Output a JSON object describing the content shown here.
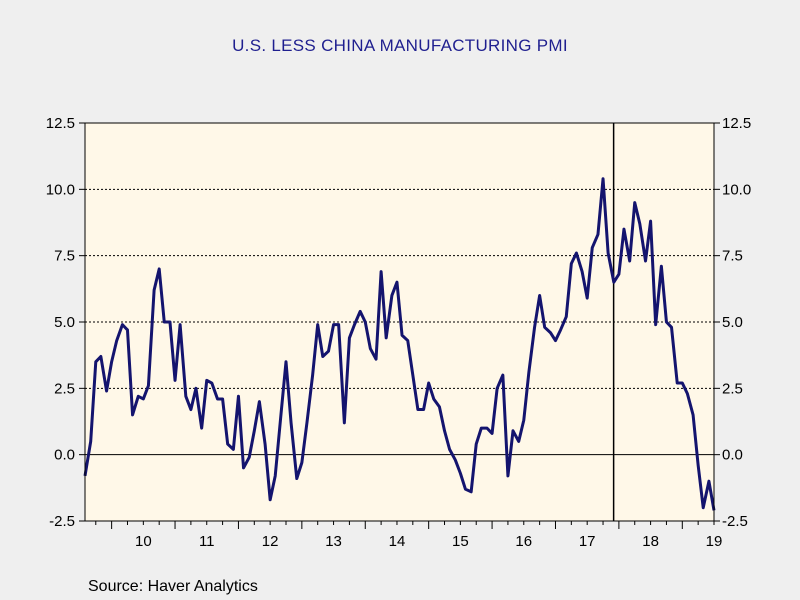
{
  "chart_data": {
    "type": "line",
    "title": "U.S. LESS CHINA MANUFACTURING PMI",
    "source": "Source:  Haver Analytics",
    "ylim": [
      -2.5,
      12.5
    ],
    "xlim": [
      2009.58,
      2019.5
    ],
    "yticks": [
      12.5,
      10.0,
      7.5,
      5.0,
      2.5,
      0.0,
      -2.5
    ],
    "ytick_labels": [
      "12.5",
      "10.0",
      "7.5",
      "5.0",
      "2.5",
      "0.0",
      "-2.5"
    ],
    "xtick_labels": [
      {
        "label": "10",
        "year": 2010
      },
      {
        "label": "11",
        "year": 2011
      },
      {
        "label": "12",
        "year": 2012
      },
      {
        "label": "13",
        "year": 2013
      },
      {
        "label": "14",
        "year": 2014
      },
      {
        "label": "15",
        "year": 2015
      },
      {
        "label": "16",
        "year": 2016
      },
      {
        "label": "17",
        "year": 2017
      },
      {
        "label": "18",
        "year": 2018
      },
      {
        "label": "19",
        "year": 2019
      }
    ],
    "grid": "horizontal dashed",
    "vertical_marker": 2017.917,
    "line_color": "#14146e",
    "plot_background": "#fff8e8",
    "series": [
      {
        "x": [
          2009.58,
          2009.67,
          2009.75,
          2009.83,
          2009.92,
          2010.0,
          2010.08,
          2010.17,
          2010.25,
          2010.33,
          2010.42,
          2010.5,
          2010.58,
          2010.67,
          2010.75,
          2010.83,
          2010.92,
          2011.0,
          2011.08,
          2011.17,
          2011.25,
          2011.33,
          2011.42,
          2011.5,
          2011.58,
          2011.67,
          2011.75,
          2011.83,
          2011.92,
          2012.0,
          2012.08,
          2012.17,
          2012.25,
          2012.33,
          2012.42,
          2012.5,
          2012.58,
          2012.67,
          2012.75,
          2012.83,
          2012.92,
          2013.0,
          2013.08,
          2013.17,
          2013.25,
          2013.33,
          2013.42,
          2013.5,
          2013.58,
          2013.67,
          2013.75,
          2013.83,
          2013.92,
          2014.0,
          2014.08,
          2014.17,
          2014.25,
          2014.33,
          2014.42,
          2014.5,
          2014.58,
          2014.67,
          2014.75,
          2014.83,
          2014.92,
          2015.0,
          2015.08,
          2015.17,
          2015.25,
          2015.33,
          2015.42,
          2015.5,
          2015.58,
          2015.67,
          2015.75,
          2015.83,
          2015.92,
          2016.0,
          2016.08,
          2016.17,
          2016.25,
          2016.33,
          2016.42,
          2016.5,
          2016.58,
          2016.67,
          2016.75,
          2016.83,
          2016.92,
          2017.0,
          2017.08,
          2017.17,
          2017.25,
          2017.33,
          2017.42,
          2017.5,
          2017.58,
          2017.67,
          2017.75,
          2017.83,
          2017.92,
          2018.0,
          2018.08,
          2018.17,
          2018.25,
          2018.33,
          2018.42,
          2018.5,
          2018.58,
          2018.67,
          2018.75,
          2018.83,
          2018.92,
          2019.0,
          2019.08,
          2019.17,
          2019.25,
          2019.33,
          2019.42,
          2019.5
        ],
        "values": [
          -0.8,
          0.5,
          3.5,
          3.7,
          2.4,
          3.5,
          4.3,
          4.9,
          4.7,
          1.5,
          2.2,
          2.1,
          2.6,
          6.2,
          7.0,
          5.0,
          5.0,
          2.8,
          4.9,
          2.2,
          1.7,
          2.5,
          1.0,
          2.8,
          2.7,
          2.1,
          2.1,
          0.4,
          0.2,
          2.2,
          -0.5,
          -0.1,
          0.9,
          2.0,
          0.4,
          -1.7,
          -0.8,
          1.5,
          3.5,
          1.2,
          -0.9,
          -0.3,
          1.2,
          3.0,
          4.9,
          3.7,
          3.9,
          4.9,
          4.9,
          1.2,
          4.4,
          4.9,
          5.4,
          5.0,
          4.0,
          3.6,
          6.9,
          4.4,
          6.0,
          6.5,
          4.5,
          4.3,
          3.0,
          1.7,
          1.7,
          2.7,
          2.1,
          1.8,
          0.9,
          0.2,
          -0.2,
          -0.7,
          -1.3,
          -1.4,
          0.4,
          1.0,
          1.0,
          0.8,
          2.5,
          3.0,
          -0.8,
          0.9,
          0.5,
          1.3,
          3.1,
          4.8,
          6.0,
          4.8,
          4.6,
          4.3,
          4.7,
          5.2,
          7.2,
          7.6,
          6.9,
          5.9,
          7.8,
          8.3,
          10.4,
          7.6,
          6.5,
          6.8,
          8.5,
          7.3,
          9.5,
          8.7,
          7.3,
          8.8,
          4.9,
          7.1,
          5.0,
          4.8,
          2.7,
          2.7,
          2.3,
          1.5,
          -0.4,
          -2.0,
          -1.0,
          -2.1
        ]
      }
    ]
  }
}
